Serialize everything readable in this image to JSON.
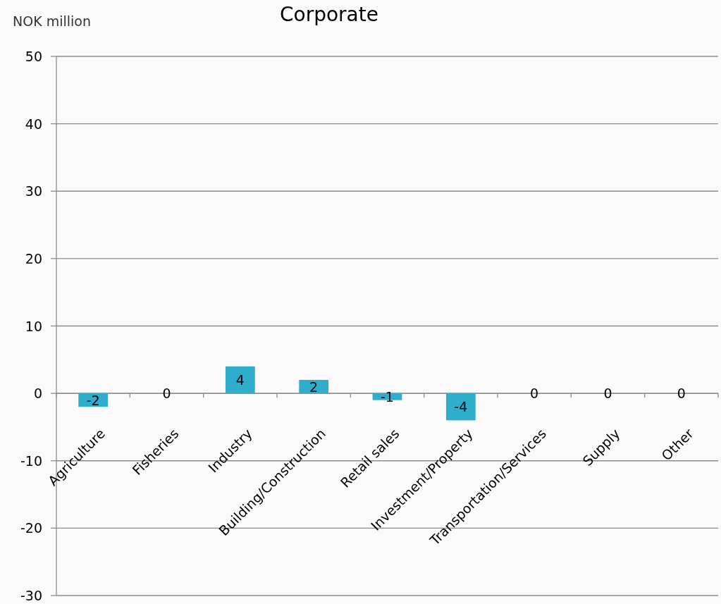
{
  "chart_data": {
    "type": "bar",
    "title": "Corporate",
    "ylabel": "NOK million",
    "categories": [
      "Agriculture",
      "Fisheries",
      "Industry",
      "Building/Construction",
      "Retail sales",
      "Investment/Property",
      "Transportation/Services",
      "Supply",
      "Other"
    ],
    "values": [
      -2,
      0,
      4,
      2,
      -1,
      -4,
      0,
      0,
      0
    ],
    "color": "#2fadcc",
    "ylim": [
      -30,
      50
    ],
    "yticks": [
      -30,
      -20,
      -10,
      0,
      10,
      20,
      30,
      40,
      50
    ],
    "grid": "y",
    "data_labels": true
  }
}
